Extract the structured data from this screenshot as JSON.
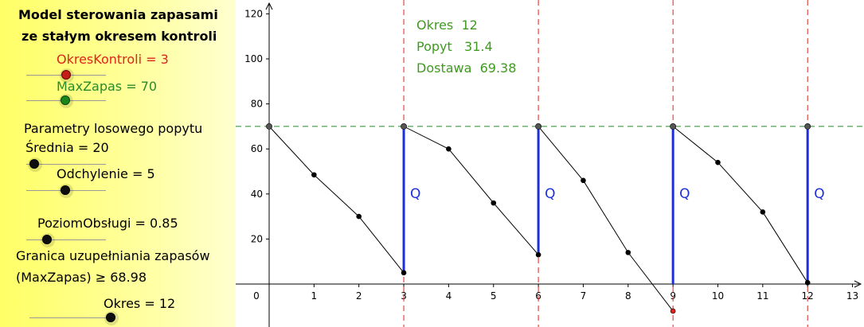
{
  "panel": {
    "title_line1": "Model sterowania zapasami",
    "title_line2": "ze stałym okresem kontroli",
    "okres_kontroli": "OkresKontroli = 3",
    "max_zapas": "MaxZapas = 70",
    "parametry": "Parametry losowego popytu",
    "srednia": "Średnia = 20",
    "odchylenie": "Odchylenie = 5",
    "poziom_obslugi": "PoziomObsługi = 0.85",
    "granica_line1": "Granica uzupełniania zapasów",
    "granica_line2": "(MaxZapas) ≥ 68.98",
    "okres": "Okres = 12"
  },
  "info": {
    "okres": "Okres  12",
    "popyt": "Popyt   31.4",
    "dostawa": "Dostawa  69.38"
  },
  "colors": {
    "red": "#e0231c",
    "green": "#2a8a2a",
    "blue": "#1d2fdb",
    "info_text": "#3f9b1f"
  },
  "chart_data": {
    "type": "line",
    "x_ticks": [
      0,
      1,
      2,
      3,
      4,
      5,
      6,
      7,
      8,
      9,
      10,
      11,
      12,
      13
    ],
    "y_ticks": [
      20,
      40,
      60,
      80,
      100,
      120
    ],
    "xlim": [
      -0.3,
      13.3
    ],
    "ylim": [
      -18,
      126
    ],
    "grid": false,
    "max_zapas_line": 70,
    "review_periods": [
      3,
      6,
      9,
      12
    ],
    "inventory_path": [
      [
        0,
        70
      ],
      [
        1,
        48.5
      ],
      [
        2,
        30
      ],
      [
        3,
        5
      ],
      [
        3,
        70
      ],
      [
        4,
        60
      ],
      [
        5,
        36
      ],
      [
        6,
        13
      ],
      [
        6,
        70
      ],
      [
        7,
        46
      ],
      [
        8,
        14
      ],
      [
        9,
        -12
      ],
      [
        9,
        70
      ],
      [
        10,
        54
      ],
      [
        11,
        32
      ],
      [
        12,
        0.6
      ],
      [
        12,
        70
      ]
    ],
    "orders": [
      {
        "x": 3,
        "from": 5,
        "to": 70,
        "label": "Q"
      },
      {
        "x": 6,
        "from": 13,
        "to": 70,
        "label": "Q"
      },
      {
        "x": 9,
        "from": 0,
        "to": 70,
        "label": "Q"
      },
      {
        "x": 12,
        "from": 0.6,
        "to": 70,
        "label": "Q"
      }
    ],
    "negative_point": [
      9,
      -12
    ]
  }
}
